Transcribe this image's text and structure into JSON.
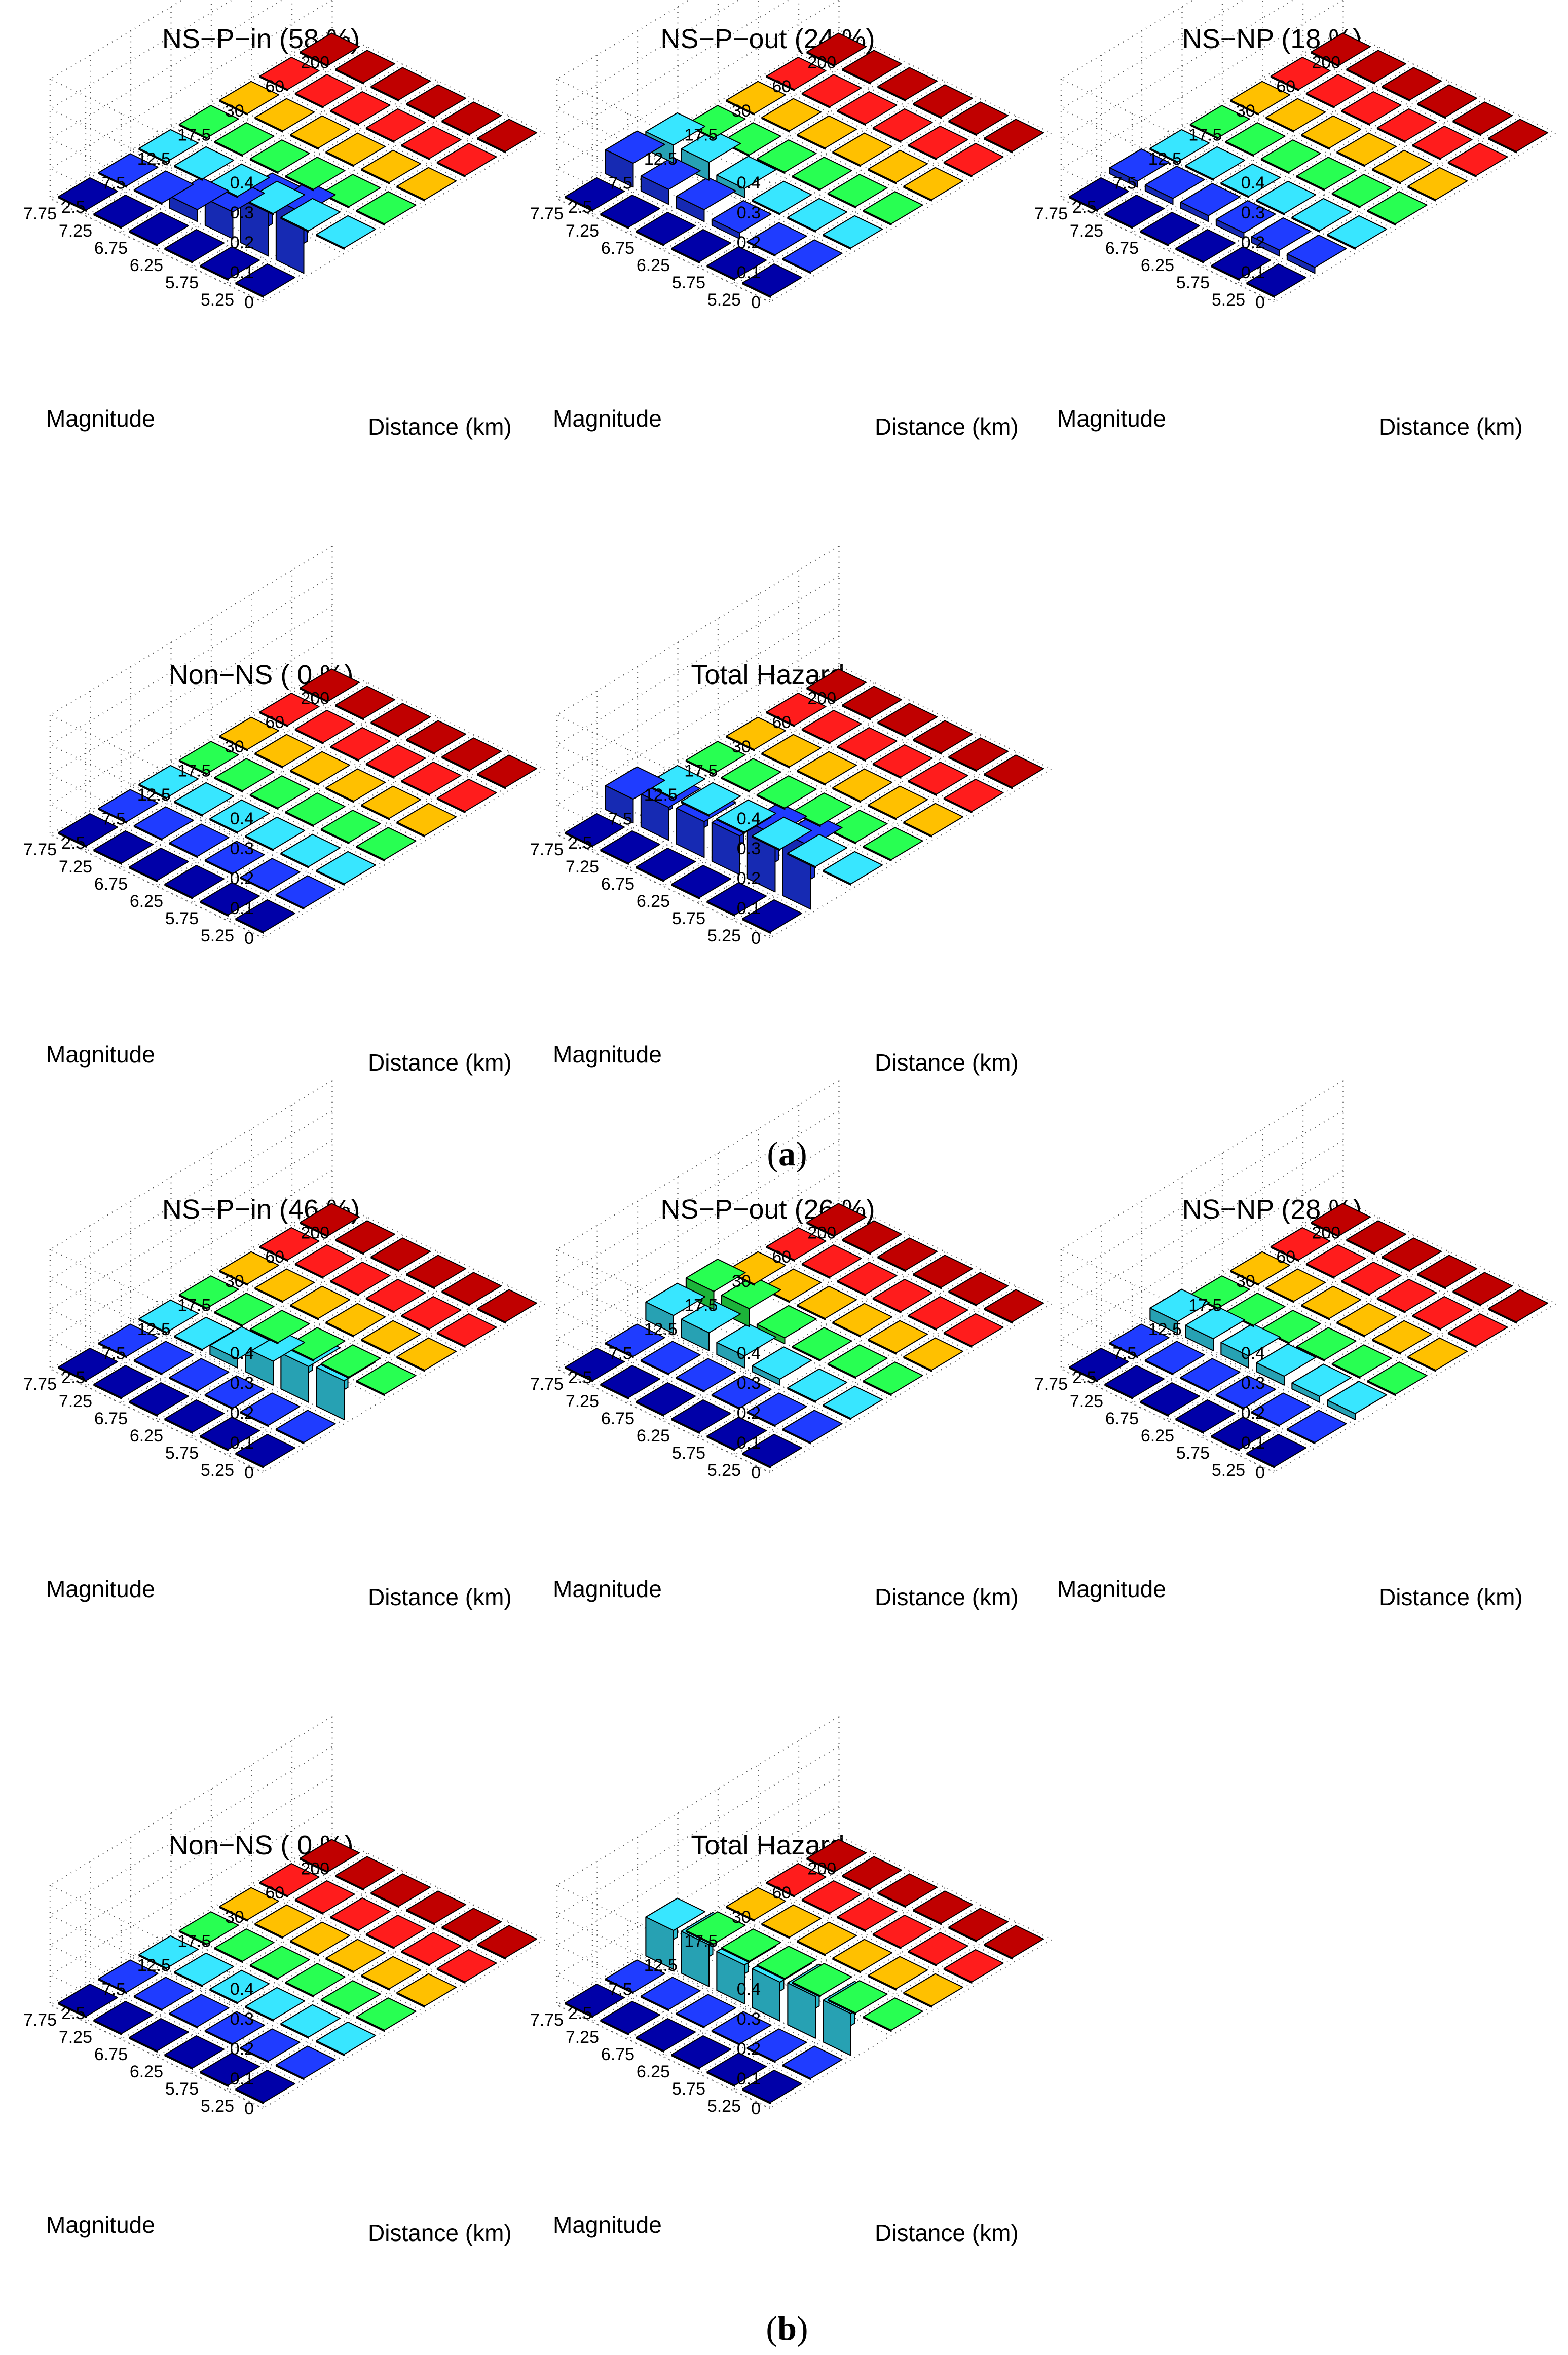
{
  "figure": {
    "captions": [
      {
        "open": "(",
        "letter": "a",
        "close": ")"
      },
      {
        "open": "(",
        "letter": "b",
        "close": ")"
      }
    ]
  },
  "colors": {
    "d1": "#0000a8",
    "d2": "#1f3cff",
    "d3": "#38e6ff",
    "d4": "#28ff52",
    "d5": "#ffc000",
    "d6": "#ff1c1c",
    "d7": "#c00000",
    "grid": "#555555"
  },
  "chart_data": [
    {
      "type": "bar3d",
      "panel": "a",
      "title": "NS−P−in (58 %)",
      "xlabel": "Distance (km)",
      "ylabel": "Magnitude",
      "zlim": [
        0,
        0.4
      ],
      "z_ticks": [
        "0",
        "0.1",
        "0.2",
        "0.3",
        "0.4"
      ],
      "magnitudes": [
        "5.25",
        "5.75",
        "6.25",
        "6.75",
        "7.25",
        "7.75"
      ],
      "distances": [
        "2.5",
        "7.5",
        "12.5",
        "17.5",
        "30",
        "60",
        "200"
      ],
      "values": [
        [
          0,
          0.2,
          0,
          0,
          0,
          0,
          0
        ],
        [
          0,
          0.17,
          0,
          0,
          0,
          0,
          0
        ],
        [
          0,
          0.09,
          0,
          0,
          0,
          0,
          0
        ],
        [
          0,
          0.04,
          0,
          0,
          0,
          0,
          0
        ],
        [
          0,
          0,
          0,
          0,
          0,
          0,
          0
        ],
        [
          0,
          0,
          0,
          0,
          0,
          0,
          0
        ]
      ]
    },
    {
      "type": "bar3d",
      "panel": "a",
      "title": "NS−P−out (24 %)",
      "xlabel": "Distance (km)",
      "ylabel": "Magnitude",
      "zlim": [
        0,
        0.4
      ],
      "z_ticks": [
        "0",
        "0.1",
        "0.2",
        "0.3",
        "0.4"
      ],
      "magnitudes": [
        "5.25",
        "5.75",
        "6.25",
        "6.75",
        "7.25",
        "7.75"
      ],
      "distances": [
        "2.5",
        "7.5",
        "12.5",
        "17.5",
        "30",
        "60",
        "200"
      ],
      "values": [
        [
          0,
          0,
          0,
          0,
          0,
          0,
          0
        ],
        [
          0,
          0,
          0,
          0,
          0,
          0,
          0
        ],
        [
          0,
          0.02,
          0,
          0,
          0,
          0,
          0
        ],
        [
          0,
          0.04,
          0.03,
          0,
          0,
          0,
          0
        ],
        [
          0,
          0.05,
          0.06,
          0,
          0,
          0,
          0
        ],
        [
          0,
          0.08,
          0.06,
          0,
          0,
          0,
          0
        ]
      ]
    },
    {
      "type": "bar3d",
      "panel": "a",
      "title": "NS−NP (18 %)",
      "xlabel": "Distance (km)",
      "ylabel": "Magnitude",
      "zlim": [
        0,
        0.4
      ],
      "z_ticks": [
        "0",
        "0.1",
        "0.2",
        "0.3",
        "0.4"
      ],
      "magnitudes": [
        "5.25",
        "5.75",
        "6.25",
        "6.75",
        "7.25",
        "7.75"
      ],
      "distances": [
        "2.5",
        "7.5",
        "12.5",
        "17.5",
        "30",
        "60",
        "200"
      ],
      "values": [
        [
          0,
          0.02,
          0,
          0,
          0,
          0,
          0
        ],
        [
          0,
          0.02,
          0,
          0,
          0,
          0,
          0
        ],
        [
          0,
          0.02,
          0,
          0,
          0,
          0,
          0
        ],
        [
          0,
          0.02,
          0,
          0,
          0,
          0,
          0
        ],
        [
          0,
          0.02,
          0,
          0,
          0,
          0,
          0
        ],
        [
          0,
          0.02,
          0,
          0,
          0,
          0,
          0
        ]
      ]
    },
    {
      "type": "bar3d",
      "panel": "a",
      "title": "Non−NS ( 0 %)",
      "xlabel": "Distance (km)",
      "ylabel": "Magnitude",
      "zlim": [
        0,
        0.4
      ],
      "z_ticks": [
        "0",
        "0.1",
        "0.2",
        "0.3",
        "0.4"
      ],
      "magnitudes": [
        "5.25",
        "5.75",
        "6.25",
        "6.75",
        "7.25",
        "7.75"
      ],
      "distances": [
        "2.5",
        "7.5",
        "12.5",
        "17.5",
        "30",
        "60",
        "200"
      ],
      "values": [
        [
          0,
          0,
          0,
          0,
          0,
          0,
          0
        ],
        [
          0,
          0,
          0,
          0,
          0,
          0,
          0
        ],
        [
          0,
          0,
          0,
          0,
          0,
          0,
          0
        ],
        [
          0,
          0,
          0,
          0,
          0,
          0,
          0
        ],
        [
          0,
          0,
          0,
          0,
          0,
          0,
          0
        ],
        [
          0,
          0,
          0,
          0,
          0,
          0,
          0
        ]
      ]
    },
    {
      "type": "bar3d",
      "panel": "a",
      "title": "Total Hazard",
      "xlabel": "Distance (km)",
      "ylabel": "Magnitude",
      "zlim": [
        0,
        0.4
      ],
      "z_ticks": [
        "0",
        "0.1",
        "0.2",
        "0.3",
        "0.4"
      ],
      "magnitudes": [
        "5.25",
        "5.75",
        "6.25",
        "6.75",
        "7.25",
        "7.75"
      ],
      "distances": [
        "2.5",
        "7.5",
        "12.5",
        "17.5",
        "30",
        "60",
        "200"
      ],
      "values": [
        [
          0,
          0.21,
          0,
          0,
          0,
          0,
          0
        ],
        [
          0,
          0.19,
          0,
          0,
          0,
          0,
          0
        ],
        [
          0,
          0.13,
          0,
          0,
          0,
          0,
          0
        ],
        [
          0,
          0.12,
          0,
          0,
          0,
          0,
          0
        ],
        [
          0,
          0.11,
          0,
          0,
          0,
          0,
          0
        ],
        [
          0,
          0.08,
          0,
          0,
          0,
          0,
          0
        ]
      ]
    },
    {
      "type": "bar3d",
      "panel": "b",
      "title": "NS−P−in (46 %)",
      "xlabel": "Distance (km)",
      "ylabel": "Magnitude",
      "zlim": [
        0,
        0.4
      ],
      "z_ticks": [
        "0",
        "0.1",
        "0.2",
        "0.3",
        "0.4"
      ],
      "magnitudes": [
        "5.25",
        "5.75",
        "6.25",
        "6.75",
        "7.25",
        "7.75"
      ],
      "distances": [
        "2.5",
        "7.5",
        "12.5",
        "17.5",
        "30",
        "60",
        "200"
      ],
      "values": [
        [
          0,
          0,
          0.13,
          0,
          0,
          0,
          0
        ],
        [
          0,
          0,
          0.12,
          0,
          0,
          0,
          0
        ],
        [
          0,
          0,
          0.08,
          0,
          0,
          0,
          0
        ],
        [
          0,
          0,
          0.03,
          0,
          0,
          0,
          0
        ],
        [
          0,
          0,
          0,
          0,
          0,
          0,
          0
        ],
        [
          0,
          0,
          0,
          0,
          0,
          0,
          0
        ]
      ]
    },
    {
      "type": "bar3d",
      "panel": "b",
      "title": "NS−P−out (26 %)",
      "xlabel": "Distance (km)",
      "ylabel": "Magnitude",
      "zlim": [
        0,
        0.4
      ],
      "z_ticks": [
        "0",
        "0.1",
        "0.2",
        "0.3",
        "0.4"
      ],
      "magnitudes": [
        "5.25",
        "5.75",
        "6.25",
        "6.75",
        "7.25",
        "7.75"
      ],
      "distances": [
        "2.5",
        "7.5",
        "12.5",
        "17.5",
        "30",
        "60",
        "200"
      ],
      "values": [
        [
          0,
          0,
          0,
          0,
          0,
          0,
          0
        ],
        [
          0,
          0,
          0,
          0,
          0,
          0,
          0
        ],
        [
          0,
          0,
          0.02,
          0,
          0,
          0,
          0
        ],
        [
          0,
          0,
          0.04,
          0.02,
          0,
          0,
          0
        ],
        [
          0,
          0,
          0.06,
          0.06,
          0,
          0,
          0
        ],
        [
          0,
          0,
          0.06,
          0.06,
          0,
          0,
          0
        ]
      ]
    },
    {
      "type": "bar3d",
      "panel": "b",
      "title": "NS−NP (28 %)",
      "xlabel": "Distance (km)",
      "ylabel": "Magnitude",
      "zlim": [
        0,
        0.4
      ],
      "z_ticks": [
        "0",
        "0.1",
        "0.2",
        "0.3",
        "0.4"
      ],
      "magnitudes": [
        "5.25",
        "5.75",
        "6.25",
        "6.75",
        "7.25",
        "7.75"
      ],
      "distances": [
        "2.5",
        "7.5",
        "12.5",
        "17.5",
        "30",
        "60",
        "200"
      ],
      "values": [
        [
          0,
          0,
          0.02,
          0,
          0,
          0,
          0
        ],
        [
          0,
          0,
          0.02,
          0,
          0,
          0,
          0
        ],
        [
          0,
          0,
          0.03,
          0,
          0,
          0,
          0
        ],
        [
          0,
          0,
          0.04,
          0,
          0,
          0,
          0
        ],
        [
          0,
          0,
          0.04,
          0,
          0,
          0,
          0
        ],
        [
          0,
          0,
          0.04,
          0,
          0,
          0,
          0
        ]
      ]
    },
    {
      "type": "bar3d",
      "panel": "b",
      "title": "Non−NS ( 0 %)",
      "xlabel": "Distance (km)",
      "ylabel": "Magnitude",
      "zlim": [
        0,
        0.4
      ],
      "z_ticks": [
        "0",
        "0.1",
        "0.2",
        "0.3",
        "0.4"
      ],
      "magnitudes": [
        "5.25",
        "5.75",
        "6.25",
        "6.75",
        "7.25",
        "7.75"
      ],
      "distances": [
        "2.5",
        "7.5",
        "12.5",
        "17.5",
        "30",
        "60",
        "200"
      ],
      "values": [
        [
          0,
          0,
          0,
          0,
          0,
          0,
          0
        ],
        [
          0,
          0,
          0,
          0,
          0,
          0,
          0
        ],
        [
          0,
          0,
          0,
          0,
          0,
          0,
          0
        ],
        [
          0,
          0,
          0,
          0,
          0,
          0,
          0
        ],
        [
          0,
          0,
          0,
          0,
          0,
          0,
          0
        ],
        [
          0,
          0,
          0,
          0,
          0,
          0,
          0
        ]
      ]
    },
    {
      "type": "bar3d",
      "panel": "b",
      "title": "Total Hazard",
      "xlabel": "Distance (km)",
      "ylabel": "Magnitude",
      "zlim": [
        0,
        0.4
      ],
      "z_ticks": [
        "0",
        "0.1",
        "0.2",
        "0.3",
        "0.4"
      ],
      "magnitudes": [
        "5.25",
        "5.75",
        "6.25",
        "6.75",
        "7.25",
        "7.75"
      ],
      "distances": [
        "2.5",
        "7.5",
        "12.5",
        "17.5",
        "30",
        "60",
        "200"
      ],
      "values": [
        [
          0,
          0,
          0.14,
          0,
          0,
          0,
          0
        ],
        [
          0,
          0,
          0.14,
          0,
          0,
          0,
          0
        ],
        [
          0,
          0,
          0.13,
          0,
          0,
          0,
          0
        ],
        [
          0,
          0,
          0.13,
          0,
          0,
          0,
          0
        ],
        [
          0,
          0,
          0.14,
          0,
          0,
          0,
          0
        ],
        [
          0,
          0,
          0.13,
          0,
          0,
          0,
          0
        ]
      ]
    }
  ]
}
